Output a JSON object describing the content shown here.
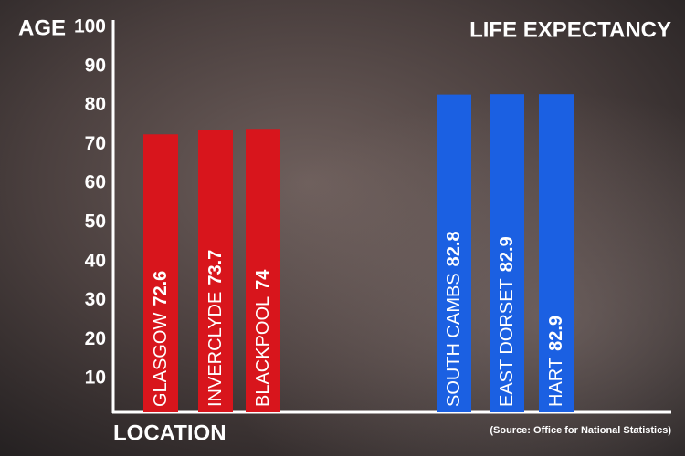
{
  "chart_data": {
    "type": "bar",
    "title": "LIFE EXPECTANCY",
    "y_label": "AGE",
    "x_label": "LOCATION",
    "source": "(Source: Office for National Statistics)",
    "categories": [
      "GLASGOW",
      "INVERCLYDE",
      "BLACKPOOL",
      "SOUTH CAMBS",
      "EAST DORSET",
      "HART"
    ],
    "values": [
      72.6,
      73.7,
      74,
      82.8,
      82.9,
      82.9
    ],
    "colors": [
      "#d8151c",
      "#d8151c",
      "#d8151c",
      "#1b60e2",
      "#1b60e2",
      "#1b60e2"
    ],
    "ylim": [
      0,
      100
    ],
    "yticks": [
      10,
      20,
      30,
      40,
      50,
      60,
      70,
      80,
      90,
      100
    ]
  }
}
